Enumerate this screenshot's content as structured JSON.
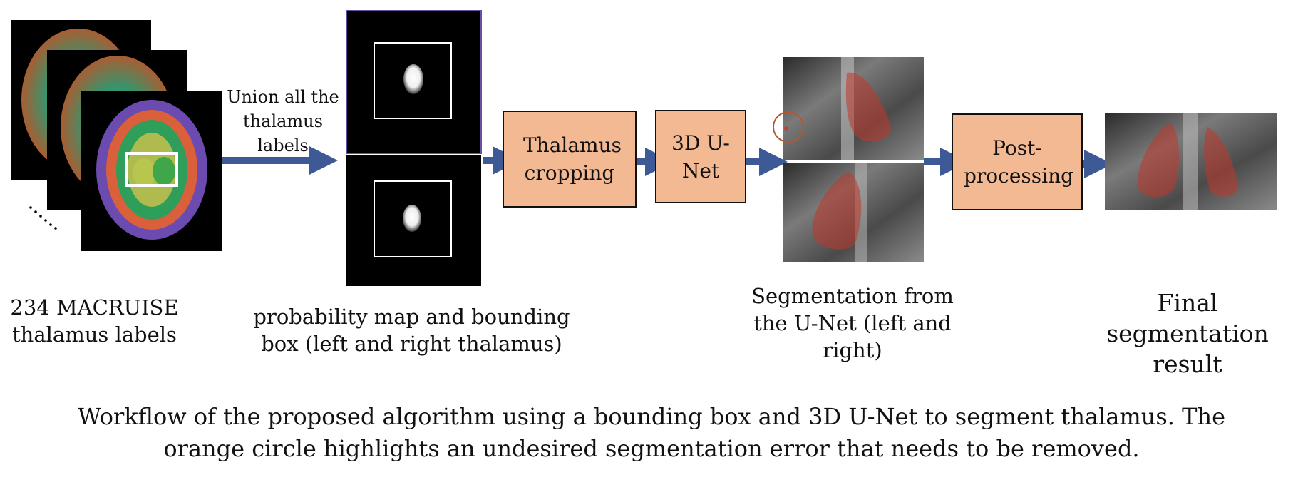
{
  "labels": {
    "macruise": "234 MACRUISE thalamus labels",
    "union": "Union all the thalamus labels",
    "probability": "probability map and bounding box (left and right thalamus)",
    "unet_seg": "Segmentation from the U-Net (left and right)",
    "final": "Final segmentation result"
  },
  "boxes": {
    "cropping": "Thalamus cropping",
    "unet": "3D U-Net",
    "postprocessing": "Post-processing"
  },
  "caption": "Workflow of the proposed algorithm using a bounding box and 3D U-Net to segment thalamus. The orange circle highlights an undesired segmentation error that needs to be removed.",
  "colors": {
    "box_fill": "#f2b992",
    "arrow": "#3d5a96",
    "error_circle": "#b5572a",
    "segmentation_overlay": "#c0392b"
  }
}
